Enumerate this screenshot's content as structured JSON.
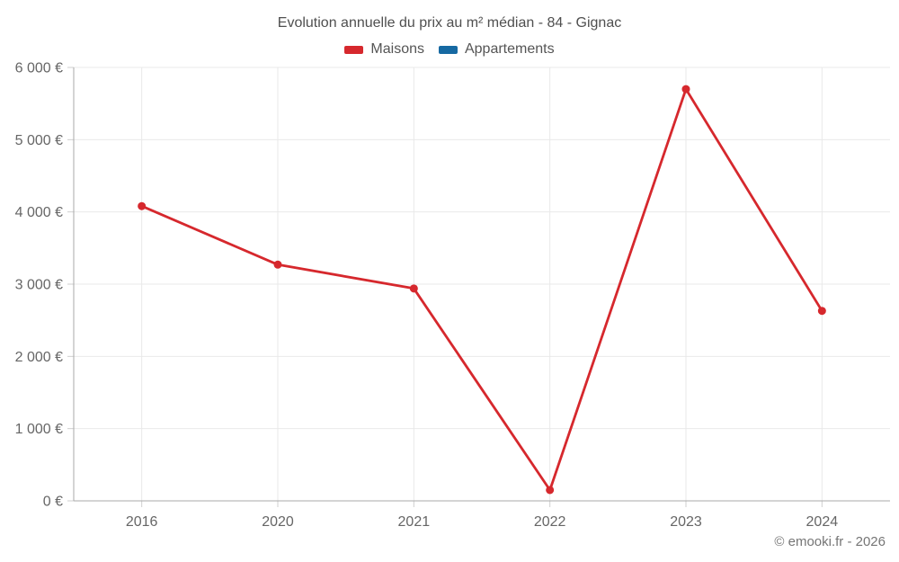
{
  "page": {
    "title": "Evolution annuelle du prix au m² médian - 84 - Gignac",
    "copyright": "© emooki.fr - 2026"
  },
  "legend": {
    "items": [
      {
        "label": "Maisons",
        "color": "#d6282d"
      },
      {
        "label": "Appartements",
        "color": "#1669a2"
      }
    ]
  },
  "colors": {
    "maisons": "#d6282d",
    "appartements": "#1669a2",
    "grid": "#e9e9e9",
    "axis_line": "#a9a9a9",
    "tick": "#cfcfcf",
    "axis_text": "#666666",
    "title_text": "#4f4f4f",
    "copyright_text": "#757575"
  },
  "chart_data": {
    "type": "line",
    "title": "Evolution annuelle du prix au m² médian - 84 - Gignac",
    "xlabel": "",
    "ylabel": "",
    "categories": [
      "2016",
      "2020",
      "2021",
      "2022",
      "2023",
      "2024"
    ],
    "series": [
      {
        "name": "Maisons",
        "color": "#d6282d",
        "values": [
          4080,
          3270,
          2940,
          150,
          5700,
          2630
        ]
      },
      {
        "name": "Appartements",
        "color": "#1669a2",
        "values": []
      }
    ],
    "ylim": [
      0,
      6000
    ],
    "ytick_values": [
      0,
      1000,
      2000,
      3000,
      4000,
      5000,
      6000
    ],
    "ytick_labels": [
      "0 €",
      "1 000 €",
      "2 000 €",
      "3 000 €",
      "4 000 €",
      "5 000 €",
      "6 000 €"
    ],
    "grid": true,
    "legend_position": "top"
  }
}
